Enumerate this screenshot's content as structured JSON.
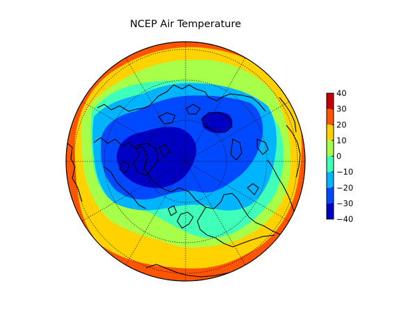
{
  "chart_data": {
    "type": "heatmap",
    "title": "NCEP Air Temperature",
    "projection": "north-polar-orthographic",
    "graticule": "dotted",
    "coastlines": true,
    "colorbar": {
      "placement": "right",
      "range": [
        -40,
        40
      ],
      "levels": [
        -40,
        -30,
        -20,
        -10,
        0,
        10,
        20,
        30,
        40
      ],
      "tick_labels": [
        "40",
        "30",
        "20",
        "10",
        "0",
        "−10",
        "−20",
        "−30",
        "−40"
      ],
      "colors": [
        "#0000c4",
        "#0049ff",
        "#00b4ff",
        "#40ffb8",
        "#a8ff4a",
        "#ffd200",
        "#ff5500",
        "#c60000"
      ]
    }
  }
}
